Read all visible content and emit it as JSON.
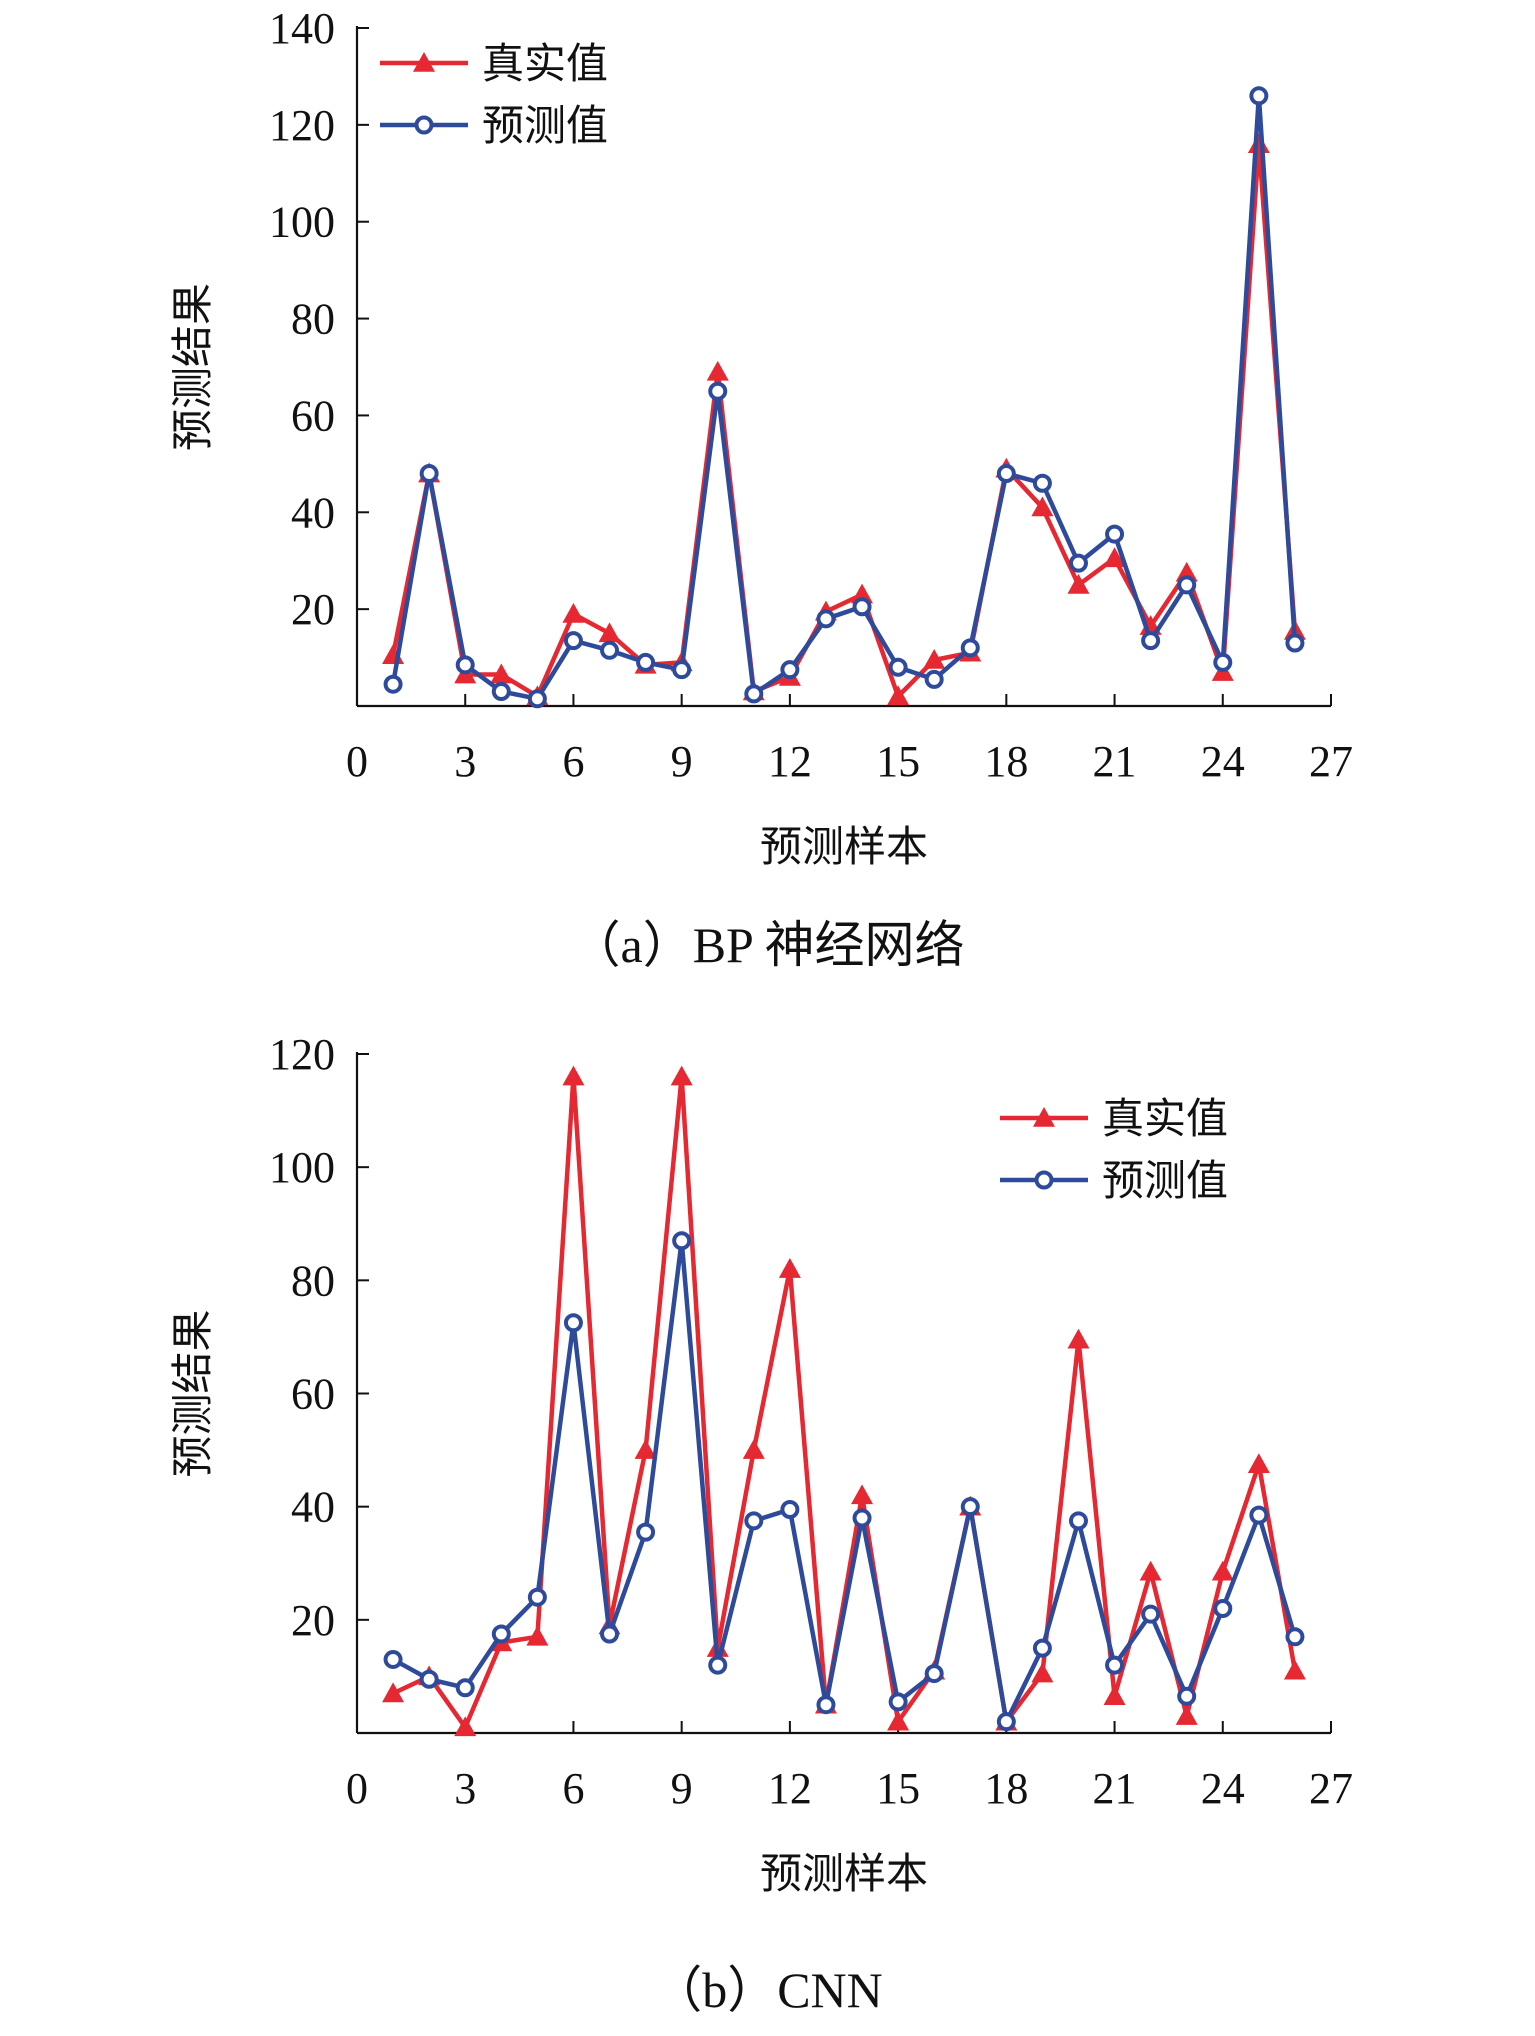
{
  "chart_data": [
    {
      "type": "line",
      "caption": "（a）BP 神经网络",
      "xlabel": "预测样本",
      "ylabel": "预测结果",
      "xlim": [
        0,
        27
      ],
      "ylim": [
        0,
        140
      ],
      "xticks": [
        0,
        3,
        6,
        9,
        12,
        15,
        18,
        21,
        24,
        27
      ],
      "yticks": [
        20,
        40,
        60,
        80,
        100,
        120,
        140
      ],
      "legend_position": "top-left",
      "x": [
        1,
        2,
        3,
        4,
        5,
        6,
        7,
        8,
        9,
        10,
        11,
        12,
        13,
        14,
        15,
        16,
        17,
        18,
        19,
        20,
        21,
        22,
        23,
        24,
        25,
        26
      ],
      "series": [
        {
          "name": "真实值",
          "color": "#e52831",
          "marker": "triangle",
          "values": [
            10.5,
            48,
            6.5,
            6.5,
            2,
            19,
            15,
            8.5,
            9,
            69,
            3,
            6,
            19.5,
            23,
            2,
            9.5,
            11,
            49,
            41,
            25,
            30.5,
            16.5,
            27.5,
            7,
            116,
            15.5
          ]
        },
        {
          "name": "预测值",
          "color": "#2e4a9a",
          "marker": "circle",
          "values": [
            4.5,
            48,
            8.5,
            3,
            1.5,
            13.5,
            11.5,
            9,
            7.5,
            65,
            2.5,
            7.5,
            18,
            20.5,
            8,
            5.5,
            12,
            48,
            46,
            29.5,
            35.5,
            13.5,
            25,
            9,
            126,
            13
          ]
        }
      ]
    },
    {
      "type": "line",
      "caption": "（b）CNN",
      "xlabel": "预测样本",
      "ylabel": "预测结果",
      "xlim": [
        0,
        27
      ],
      "ylim": [
        0,
        120
      ],
      "xticks": [
        0,
        3,
        6,
        9,
        12,
        15,
        18,
        21,
        24,
        27
      ],
      "yticks": [
        20,
        40,
        60,
        80,
        100,
        120
      ],
      "legend_position": "top-right",
      "x": [
        1,
        2,
        3,
        4,
        5,
        6,
        7,
        8,
        9,
        10,
        11,
        12,
        13,
        14,
        15,
        16,
        17,
        18,
        19,
        20,
        21,
        22,
        23,
        24,
        25,
        26
      ],
      "series": [
        {
          "name": "真实值",
          "color": "#e52831",
          "marker": "triangle",
          "values": [
            7,
            10,
            1,
            16,
            17,
            116,
            19,
            50,
            116,
            15,
            50,
            82,
            5,
            42,
            2,
            11,
            40,
            2,
            10.5,
            69.5,
            6.5,
            28.5,
            3,
            28.5,
            47.5,
            11
          ]
        },
        {
          "name": "预测值",
          "color": "#2e4a9a",
          "marker": "circle",
          "values": [
            13,
            9.5,
            8,
            17.5,
            24,
            72.5,
            17.5,
            35.5,
            87,
            12,
            37.5,
            39.5,
            5,
            38,
            5.5,
            10.5,
            40,
            2,
            15,
            37.5,
            12,
            21,
            6.5,
            22,
            38.5,
            17
          ]
        }
      ]
    }
  ]
}
